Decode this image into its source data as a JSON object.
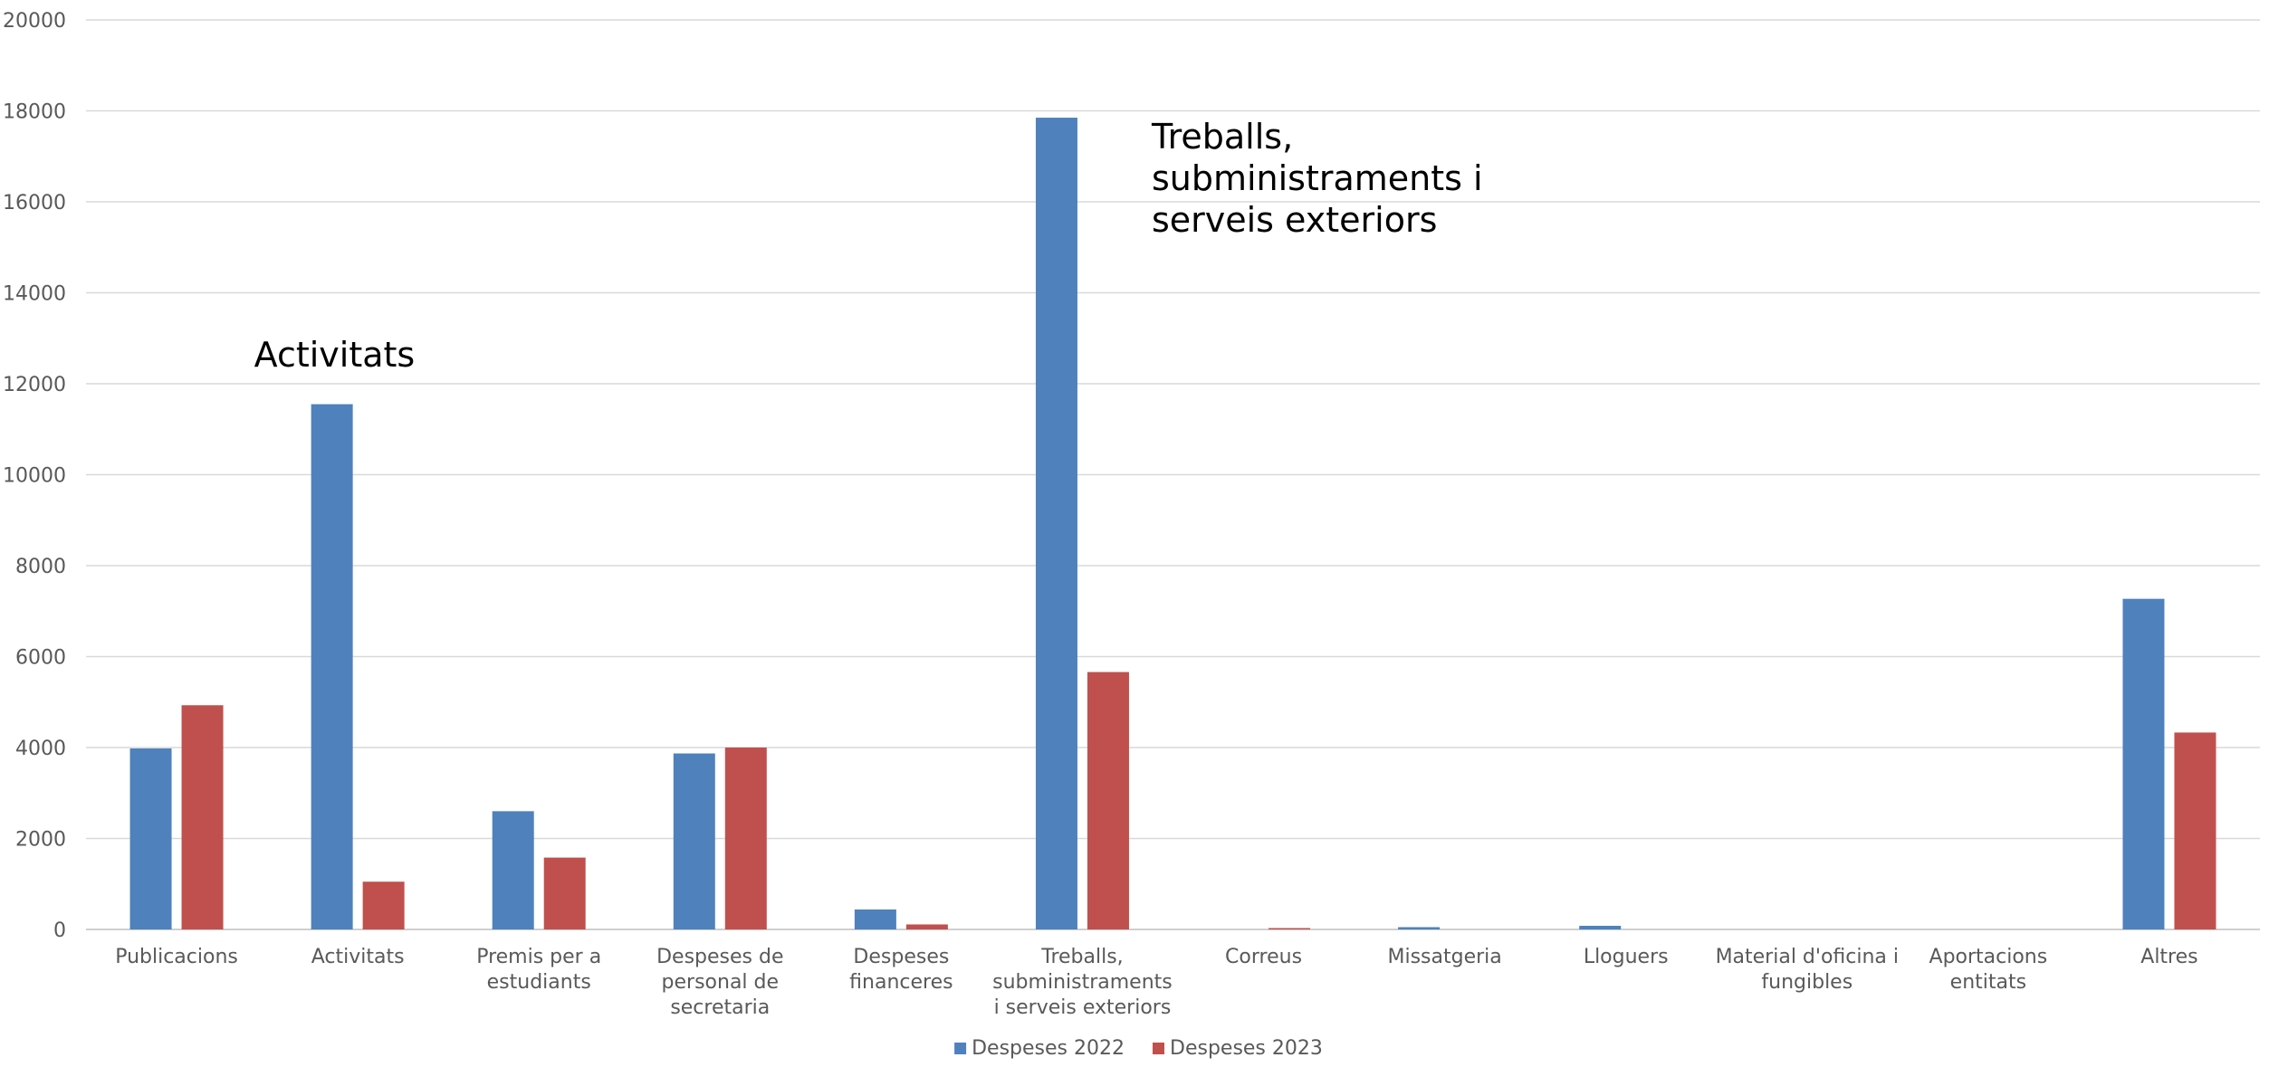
{
  "chart_data": {
    "type": "bar",
    "title": "",
    "xlabel": "",
    "ylabel": "",
    "ylim": [
      0,
      20000
    ],
    "yticks": [
      0,
      2000,
      4000,
      6000,
      8000,
      10000,
      12000,
      14000,
      16000,
      18000,
      20000
    ],
    "grid": true,
    "legend_position": "bottom",
    "categories": [
      [
        "Publicacions"
      ],
      [
        "Activitats"
      ],
      [
        "Premis per a",
        "estudiants"
      ],
      [
        "Despeses de",
        "personal de",
        "secretaria"
      ],
      [
        "Despeses",
        "financeres"
      ],
      [
        "Treballs,",
        "subministraments",
        "i serveis exteriors"
      ],
      [
        "Correus"
      ],
      [
        "Missatgeria"
      ],
      [
        "Lloguers"
      ],
      [
        "Material d'oficina i",
        "fungibles"
      ],
      [
        "Aportacions",
        "entitats"
      ],
      [
        "Altres"
      ]
    ],
    "series": [
      {
        "name": "Despeses 2022",
        "color": "#4f81bd",
        "values": [
          3980,
          11550,
          2600,
          3870,
          440,
          17850,
          0,
          50,
          80,
          0,
          0,
          7270
        ]
      },
      {
        "name": "Despeses 2023",
        "color": "#c0504d",
        "values": [
          4930,
          1050,
          1580,
          4000,
          110,
          5660,
          30,
          0,
          0,
          0,
          0,
          4330
        ]
      }
    ],
    "annotations": [
      {
        "category_index": 1,
        "lines": [
          "Activitats"
        ]
      },
      {
        "category_index": 5,
        "lines": [
          "Treballs,",
          "subministraments i",
          "serveis exteriors"
        ]
      }
    ]
  }
}
